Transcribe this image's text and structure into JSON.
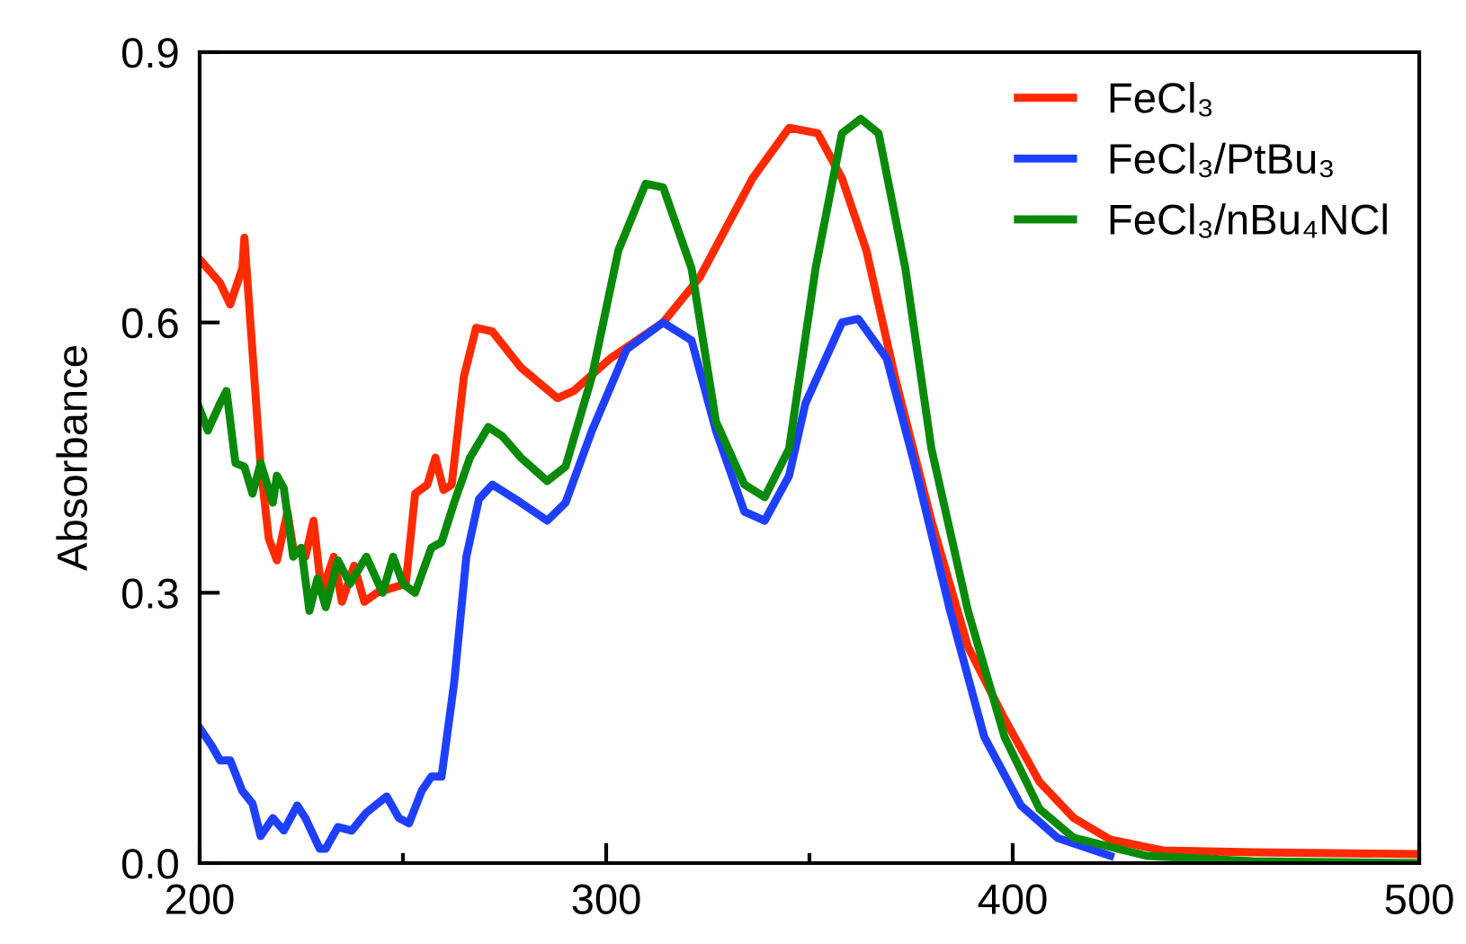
{
  "chart_data": {
    "type": "line",
    "ylabel": "Absorbance",
    "xlim": [
      200,
      500
    ],
    "ylim": [
      0,
      0.9
    ],
    "xticks": [
      200,
      {
        "value": 250,
        "label": null
      },
      300,
      {
        "value": 350,
        "label": null
      },
      400,
      {
        "value": 450,
        "label": null
      },
      500
    ],
    "yticks": [
      {
        "value": 0,
        "label": "0.0"
      },
      0.3,
      0.6,
      0.9
    ],
    "grid": false,
    "legend": "top right",
    "marker": "none",
    "line_style": "solid",
    "series": [
      {
        "name": "FeCl₃",
        "color": "#ff2a00",
        "x": [
          200,
          205,
          207.5,
          210.5,
          211,
          215,
          217,
          219,
          221.6,
          223,
          226,
          228,
          230,
          233,
          235,
          238,
          240.5,
          243.6,
          250.7,
          253,
          256,
          258,
          260,
          262,
          265,
          268,
          272,
          279,
          288,
          292,
          301,
          314,
          323,
          336,
          345,
          352,
          358,
          364,
          371,
          380,
          389,
          398,
          406.6,
          415,
          424,
          437,
          459,
          499
        ],
        "values": [
          0.67,
          0.644,
          0.62,
          0.66,
          0.694,
          0.44,
          0.36,
          0.336,
          0.39,
          0.35,
          0.34,
          0.38,
          0.3,
          0.34,
          0.29,
          0.33,
          0.29,
          0.3,
          0.31,
          0.41,
          0.42,
          0.45,
          0.414,
          0.42,
          0.54,
          0.594,
          0.59,
          0.55,
          0.516,
          0.524,
          0.56,
          0.6,
          0.65,
          0.76,
          0.816,
          0.81,
          0.76,
          0.68,
          0.54,
          0.38,
          0.24,
          0.16,
          0.09,
          0.05,
          0.026,
          0.014,
          0.012,
          0.01
        ]
      },
      {
        "name": "FeCl₃/PtBu₃",
        "color": "#1f3fff",
        "x": [
          200,
          203,
          205,
          207.5,
          210.5,
          213,
          215,
          218,
          220.7,
          224,
          226,
          229.5,
          231,
          234,
          237.4,
          241,
          246,
          249,
          251.5,
          254.6,
          257,
          259.5,
          262.6,
          265.6,
          268.7,
          272,
          279,
          285.5,
          290,
          296.5,
          305,
          314,
          321,
          327,
          334,
          339,
          345,
          349,
          358,
          362,
          369,
          376,
          384.6,
          393,
          402,
          411,
          424
        ],
        "values": [
          0.15,
          0.13,
          0.114,
          0.114,
          0.08,
          0.066,
          0.03,
          0.05,
          0.036,
          0.064,
          0.05,
          0.016,
          0.016,
          0.04,
          0.036,
          0.056,
          0.074,
          0.05,
          0.044,
          0.08,
          0.096,
          0.096,
          0.2,
          0.34,
          0.404,
          0.42,
          0.4,
          0.38,
          0.4,
          0.48,
          0.57,
          0.6,
          0.58,
          0.48,
          0.39,
          0.38,
          0.43,
          0.51,
          0.6,
          0.604,
          0.56,
          0.44,
          0.28,
          0.14,
          0.064,
          0.028,
          0.008
        ]
      },
      {
        "name": "FeCl₃/nBu₄NCl",
        "color": "#0a8a0a",
        "x": [
          200,
          202,
          205,
          206.6,
          208.8,
          211,
          213,
          215,
          218,
          219,
          220.7,
          223,
          225,
          227,
          229,
          231,
          234,
          237,
          241,
          245,
          247.6,
          250,
          253,
          257,
          259.5,
          262.6,
          266.5,
          271,
          274.4,
          279,
          285.5,
          290,
          296.5,
          303,
          309.7,
          314,
          321,
          327,
          334,
          339,
          345,
          351.5,
          358,
          362.6,
          367,
          373.6,
          380,
          389,
          398,
          406.6,
          415,
          433,
          459,
          499
        ],
        "values": [
          0.504,
          0.48,
          0.51,
          0.524,
          0.444,
          0.44,
          0.41,
          0.444,
          0.4,
          0.43,
          0.416,
          0.34,
          0.35,
          0.28,
          0.316,
          0.284,
          0.336,
          0.31,
          0.34,
          0.3,
          0.34,
          0.31,
          0.3,
          0.35,
          0.356,
          0.4,
          0.45,
          0.484,
          0.474,
          0.45,
          0.424,
          0.44,
          0.54,
          0.68,
          0.754,
          0.75,
          0.66,
          0.49,
          0.42,
          0.406,
          0.46,
          0.66,
          0.81,
          0.826,
          0.81,
          0.66,
          0.46,
          0.28,
          0.14,
          0.06,
          0.028,
          0.008,
          0.002,
          0
        ]
      }
    ]
  }
}
